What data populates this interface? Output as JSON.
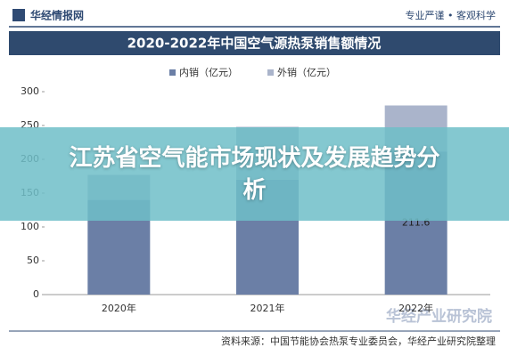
{
  "header": {
    "logo": "华经情报网",
    "slogan": "专业严谨 • 客观科学"
  },
  "chart_data": {
    "type": "stacked_bar",
    "title": "2020-2022年中国空气源热泵销售额情况",
    "categories": [
      "2020年",
      "2021年",
      "2022年"
    ],
    "series": [
      {
        "name": "内销（亿元）",
        "color": "#6b7fa6",
        "values": [
          140,
          170,
          211.6
        ],
        "value_labels": [
          null,
          null,
          "211.6"
        ]
      },
      {
        "name": "外销（亿元）",
        "color": "#aab4cb",
        "values": [
          37,
          78,
          68
        ]
      }
    ],
    "ylim": [
      0,
      300
    ],
    "yticks": [
      0,
      50,
      100,
      150,
      200,
      250,
      300
    ],
    "grid": false,
    "legend": "top"
  },
  "banner": "江苏省空气能市场现状及发展趋势分析",
  "source": "资料来源：中国节能协会热泵专业委员会，华经产业研究院整理",
  "watermark": "华经产业研究院"
}
